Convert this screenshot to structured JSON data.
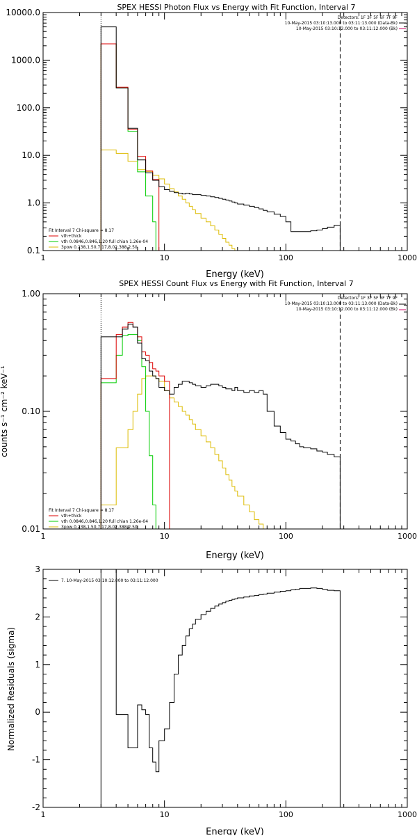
{
  "chart_data": [
    {
      "type": "line",
      "step": true,
      "title": "SPEX HESSI Photon Flux vs Energy with Fit Function, Interval 7",
      "xlabel": "Energy (keV)",
      "ylabel": "",
      "xscale": "log",
      "yscale": "log",
      "xlim": [
        1,
        1000
      ],
      "ylim": [
        0.1,
        10000
      ],
      "x_ticks": [
        "1",
        "10",
        "100",
        "1000"
      ],
      "y_ticks": [
        "0.1",
        "1.0",
        "10.0",
        "100.0",
        "1000.0",
        "10000.0"
      ],
      "vlines": [
        {
          "x": 3,
          "style": "dotted"
        },
        {
          "x": 280,
          "style": "dashed"
        }
      ],
      "legend_top": {
        "placement": "top-right",
        "lines": [
          "Detectors: 1F 3F 5F 6F 7F 9F",
          "10-May-2015 03:10:13.000 to 03:11:13.000 (Data-Bk)",
          "10-May-2015 03:10:12.000 to 03:11:12.000 (Bk)"
        ]
      },
      "legend_fit": {
        "placement": "bottom-left",
        "header": "Fit Interval  7    Chi-square = 8.17",
        "entries": [
          {
            "label": "vth+thick",
            "color": "#dd0000"
          },
          {
            "label": "vth 0.0846,0.846,1.20  full chian 1.26e-04",
            "color": "#00cc00"
          },
          {
            "label": "3pow 0.238,1.50,7.17,8.02,388,2.50",
            "color": "#ddbb00"
          }
        ]
      },
      "edges": [
        3.0,
        3.5,
        4.0,
        4.5,
        5.0,
        5.5,
        6.0,
        6.5,
        7.0,
        7.5,
        8.0,
        8.5,
        9.0,
        10.0,
        11.0,
        12.0,
        13.0,
        14.0,
        15.0,
        16.0,
        17.0,
        18.0,
        20.0,
        22.0,
        24.0,
        26.0,
        28.0,
        30.0,
        32.0,
        34.0,
        36.0,
        38.0,
        40.0,
        45.0,
        50.0,
        55.0,
        60.0,
        65.0,
        70.0,
        80.0,
        90.0,
        100.0,
        110.0,
        120.0,
        130.0,
        140.0,
        160.0,
        180.0,
        200.0,
        220.0,
        250.0,
        280.0
      ],
      "series": [
        {
          "name": "",
          "color": "#000000",
          "values": [
            5000.0,
            5000.0,
            260.0,
            260.0,
            37.0,
            37.0,
            8.0,
            8.0,
            4.3,
            4.3,
            3.0,
            3.0,
            2.2,
            1.9,
            1.75,
            1.65,
            1.6,
            1.55,
            1.6,
            1.55,
            1.5,
            1.5,
            1.45,
            1.4,
            1.35,
            1.3,
            1.25,
            1.2,
            1.15,
            1.1,
            1.05,
            1.0,
            0.95,
            0.9,
            0.85,
            0.8,
            0.75,
            0.7,
            0.65,
            0.58,
            0.52,
            0.4,
            0.25,
            0.25,
            0.25,
            0.25,
            0.26,
            0.27,
            0.29,
            0.31,
            0.34
          ]
        },
        {
          "name": "",
          "color": "#dd0000",
          "values": [
            2200.0,
            2200.0,
            270.0,
            270.0,
            35.0,
            35.0,
            9.5,
            9.5,
            4.7,
            4.7,
            3.1,
            3.1
          ]
        },
        {
          "name": "",
          "color": "#00cc00",
          "values": [
            2200.0,
            2200.0,
            260.0,
            260.0,
            32.0,
            32.0,
            4.5,
            4.5,
            1.4,
            1.4,
            0.4,
            0.1
          ]
        },
        {
          "name": "",
          "color": "#ddbb00",
          "values": [
            13.0,
            13.0,
            11.0,
            11.0,
            7.5,
            7.5,
            5.0,
            5.0,
            4.6,
            4.6,
            3.8,
            3.8,
            3.2,
            2.5,
            2.0,
            1.7,
            1.4,
            1.2,
            1.0,
            0.85,
            0.72,
            0.6,
            0.48,
            0.4,
            0.33,
            0.27,
            0.22,
            0.18,
            0.15,
            0.13,
            0.11,
            0.1
          ]
        }
      ]
    },
    {
      "type": "line",
      "step": true,
      "title": "SPEX HESSI Count Flux vs Energy with Fit Function, Interval 7",
      "xlabel": "Energy (keV)",
      "ylabel": "counts s⁻¹ cm⁻² keV⁻¹",
      "xscale": "log",
      "yscale": "log",
      "xlim": [
        1,
        1000
      ],
      "ylim": [
        0.01,
        1.0
      ],
      "x_ticks": [
        "1",
        "10",
        "100",
        "1000"
      ],
      "y_ticks": [
        "0.01",
        "0.10",
        "1.00"
      ],
      "vlines": [
        {
          "x": 3,
          "style": "dotted"
        },
        {
          "x": 280,
          "style": "dashed"
        }
      ],
      "legend_top": {
        "placement": "top-right",
        "lines": [
          "Detectors: 1F 3F 5F 6F 7F 9F",
          "10-May-2015 03:10:13.000 to 03:11:13.000 (Data-Bk)",
          "10-May-2015 03:10:12.000 to 03:11:12.000 (Bk)"
        ]
      },
      "legend_fit": {
        "placement": "bottom-left",
        "header": "Fit Interval  7    Chi-square = 8.17",
        "entries": [
          {
            "label": "vth+thick",
            "color": "#dd0000"
          },
          {
            "label": "vth 0.0846,0.846,1.20  full chian 1.26e-04",
            "color": "#00cc00"
          },
          {
            "label": "3pow 0.238,1.50,7.17,8.02,388,2.50",
            "color": "#ddbb00"
          }
        ]
      },
      "edges": [
        3.0,
        3.5,
        4.0,
        4.5,
        5.0,
        5.5,
        6.0,
        6.5,
        7.0,
        7.5,
        8.0,
        8.5,
        9.0,
        10.0,
        11.0,
        12.0,
        13.0,
        14.0,
        15.0,
        16.0,
        17.0,
        18.0,
        20.0,
        22.0,
        24.0,
        26.0,
        28.0,
        30.0,
        32.0,
        34.0,
        36.0,
        38.0,
        40.0,
        45.0,
        50.0,
        55.0,
        60.0,
        65.0,
        70.0,
        80.0,
        90.0,
        100.0,
        110.0,
        120.0,
        130.0,
        140.0,
        160.0,
        180.0,
        200.0,
        220.0,
        250.0,
        280.0
      ],
      "series": [
        {
          "name": "",
          "color": "#000000",
          "values": [
            0.43,
            0.43,
            0.43,
            0.5,
            0.55,
            0.52,
            0.38,
            0.28,
            0.27,
            0.22,
            0.2,
            0.19,
            0.16,
            0.15,
            0.14,
            0.16,
            0.17,
            0.18,
            0.18,
            0.175,
            0.17,
            0.165,
            0.16,
            0.165,
            0.17,
            0.17,
            0.165,
            0.16,
            0.155,
            0.155,
            0.15,
            0.16,
            0.15,
            0.145,
            0.15,
            0.145,
            0.15,
            0.14,
            0.1,
            0.075,
            0.066,
            0.058,
            0.056,
            0.053,
            0.05,
            0.049,
            0.048,
            0.046,
            0.045,
            0.043,
            0.041
          ]
        },
        {
          "name": "",
          "color": "#dd0000",
          "values": [
            0.19,
            0.19,
            0.45,
            0.52,
            0.57,
            0.52,
            0.43,
            0.32,
            0.3,
            0.26,
            0.23,
            0.22,
            0.2,
            0.18
          ]
        },
        {
          "name": "",
          "color": "#00cc00",
          "values": [
            0.175,
            0.175,
            0.3,
            0.44,
            0.45,
            0.45,
            0.4,
            0.24,
            0.1,
            0.042,
            0.016,
            0.01
          ]
        },
        {
          "name": "",
          "color": "#ddbb00",
          "values": [
            0.016,
            0.016,
            0.049,
            0.049,
            0.07,
            0.1,
            0.14,
            0.19,
            0.2,
            0.2,
            0.2,
            0.19,
            0.18,
            0.15,
            0.13,
            0.12,
            0.11,
            0.1,
            0.093,
            0.085,
            0.078,
            0.07,
            0.062,
            0.055,
            0.049,
            0.043,
            0.038,
            0.033,
            0.029,
            0.026,
            0.023,
            0.021,
            0.019,
            0.016,
            0.014,
            0.012,
            0.011,
            0.01
          ]
        }
      ]
    },
    {
      "type": "line",
      "step": true,
      "title": "",
      "xlabel": "Energy (keV)",
      "ylabel": "Normalized Residuals (sigma)",
      "xscale": "log",
      "yscale": "linear",
      "xlim": [
        1,
        1000
      ],
      "ylim": [
        -2,
        3
      ],
      "x_ticks": [
        "1",
        "10",
        "100",
        "1000"
      ],
      "y_ticks": [
        "-2",
        "-1",
        "0",
        "1",
        "2",
        "3"
      ],
      "legend_top": {
        "placement": "top-left",
        "lines": [
          "7. 10-May-2015 03:10:12.000 to 03:11:12.000"
        ]
      },
      "edges": [
        3.0,
        3.5,
        4.0,
        4.5,
        5.0,
        5.5,
        6.0,
        6.5,
        7.0,
        7.5,
        8.0,
        8.5,
        9.0,
        10.0,
        11.0,
        12.0,
        13.0,
        14.0,
        15.0,
        16.0,
        17.0,
        18.0,
        20.0,
        22.0,
        24.0,
        26.0,
        28.0,
        30.0,
        32.0,
        34.0,
        36.0,
        38.0,
        40.0,
        45.0,
        50.0,
        55.0,
        60.0,
        65.0,
        70.0,
        80.0,
        90.0,
        100.0,
        110.0,
        120.0,
        130.0,
        140.0,
        160.0,
        180.0,
        200.0,
        220.0,
        250.0,
        280.0
      ],
      "series": [
        {
          "name": "7. 10-May-2015 03:10:12.000 to 03:11:12.000",
          "color": "#000000",
          "values": [
            3.0,
            3.0,
            -0.05,
            -0.05,
            -0.75,
            -0.75,
            0.15,
            0.05,
            -0.05,
            -0.75,
            -1.05,
            -1.25,
            -0.6,
            -0.35,
            0.2,
            0.8,
            1.2,
            1.4,
            1.6,
            1.75,
            1.85,
            1.95,
            2.05,
            2.12,
            2.18,
            2.23,
            2.27,
            2.3,
            2.33,
            2.35,
            2.37,
            2.38,
            2.4,
            2.42,
            2.44,
            2.45,
            2.47,
            2.48,
            2.5,
            2.52,
            2.54,
            2.55,
            2.57,
            2.58,
            2.6,
            2.6,
            2.61,
            2.6,
            2.58,
            2.56,
            2.55
          ]
        }
      ]
    }
  ]
}
